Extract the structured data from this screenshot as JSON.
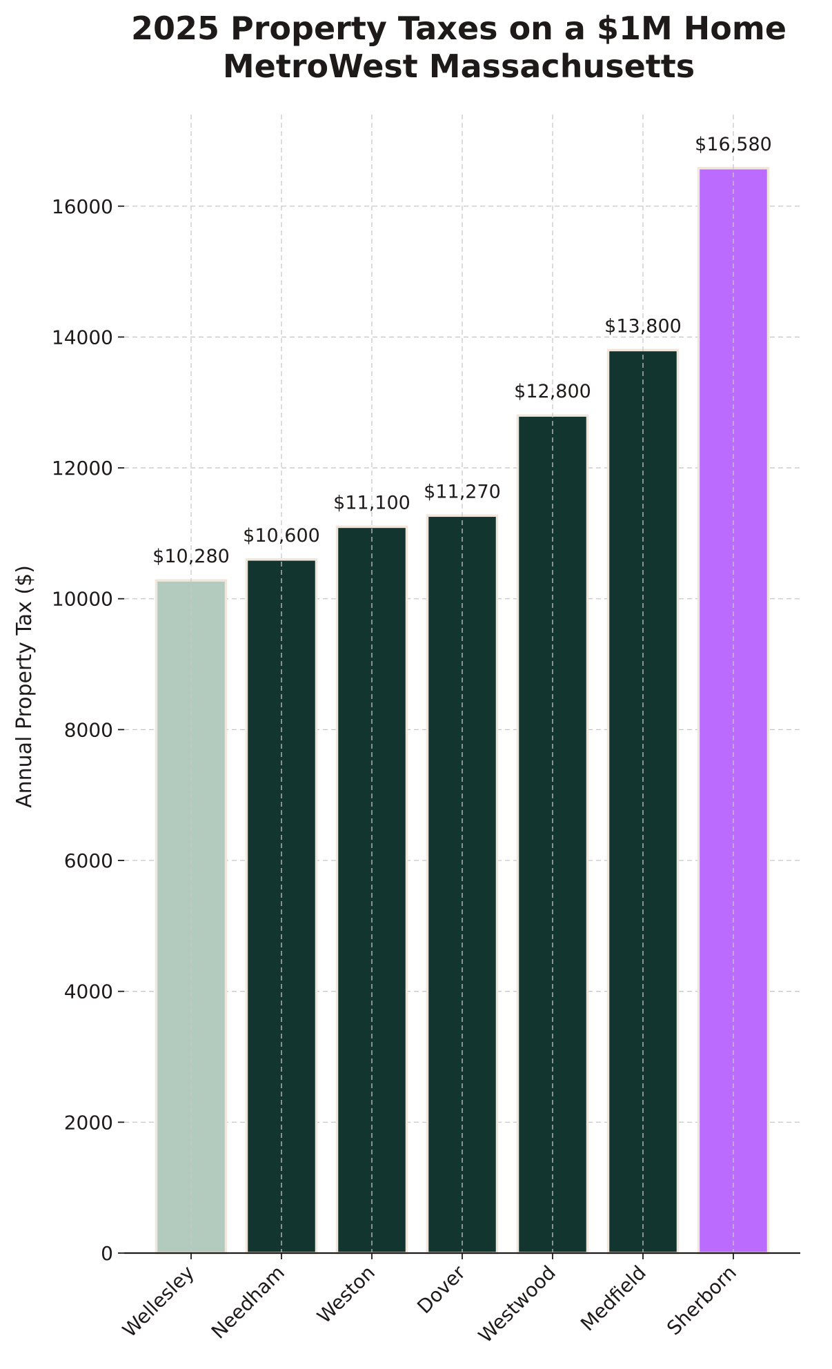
{
  "chart_data": {
    "type": "bar",
    "title_lines": [
      "2025 Property Taxes on a $1M Home",
      "MetroWest Massachusetts"
    ],
    "xlabel": "",
    "ylabel": "Annual Property Tax ($)",
    "categories": [
      "Wellesley",
      "Needham",
      "Weston",
      "Dover",
      "Westwood",
      "Medfield",
      "Sherborn"
    ],
    "values": [
      10280,
      10600,
      11100,
      11270,
      12800,
      13800,
      16580
    ],
    "data_labels": [
      "$10,280",
      "$10,600",
      "$11,100",
      "$11,270",
      "$12,800",
      "$13,800",
      "$16,580"
    ],
    "colors": [
      "#b3cbbf",
      "#13352f",
      "#13352f",
      "#13352f",
      "#13352f",
      "#13352f",
      "#bb6bfe"
    ],
    "ylim": [
      0,
      17400
    ],
    "yticks": [
      0,
      2000,
      4000,
      6000,
      8000,
      10000,
      12000,
      14000,
      16000
    ],
    "ytick_labels": [
      "0",
      "2000",
      "4000",
      "6000",
      "8000",
      "10000",
      "12000",
      "14000",
      "16000"
    ],
    "grid": true,
    "legend": "none"
  }
}
